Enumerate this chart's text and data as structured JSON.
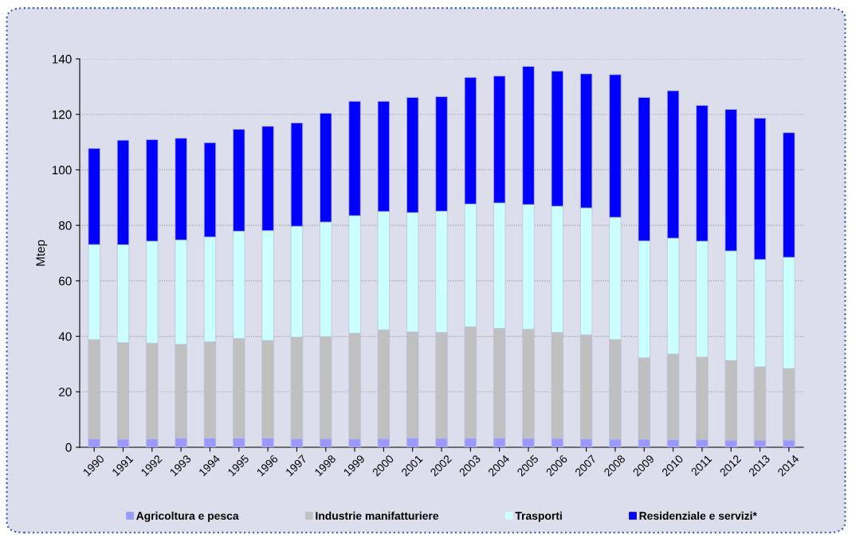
{
  "chart_data": {
    "type": "bar",
    "stacked": true,
    "ylabel": "Mtep",
    "categories": [
      "1990",
      "1991",
      "1992",
      "1993",
      "1994",
      "1995",
      "1996",
      "1997",
      "1998",
      "1999",
      "2000",
      "2001",
      "2002",
      "2003",
      "2004",
      "2005",
      "2006",
      "2007",
      "2008",
      "2009",
      "2010",
      "2011",
      "2012",
      "2013",
      "2014"
    ],
    "series": [
      {
        "name": "Agricoltura e pesca",
        "color": "#9999ff",
        "values": [
          3.0,
          2.9,
          3.0,
          3.3,
          3.3,
          3.3,
          3.3,
          3.1,
          3.1,
          3.0,
          3.1,
          3.3,
          3.2,
          3.3,
          3.3,
          3.2,
          3.2,
          3.0,
          2.9,
          2.9,
          2.8,
          2.8,
          2.6,
          2.6,
          2.6
        ]
      },
      {
        "name": "Industrie manifatturiere",
        "color": "#c0c0c0",
        "values": [
          35.8,
          34.8,
          34.5,
          33.8,
          34.7,
          35.9,
          35.2,
          36.6,
          36.8,
          38.1,
          39.2,
          38.3,
          38.2,
          40.1,
          39.6,
          39.3,
          38.2,
          37.5,
          35.9,
          29.4,
          30.8,
          29.7,
          28.7,
          26.4,
          25.8
        ]
      },
      {
        "name": "Trasporti",
        "color": "#ccffff",
        "values": [
          34.3,
          35.3,
          36.8,
          37.6,
          37.8,
          38.7,
          39.6,
          40.0,
          41.3,
          42.4,
          42.7,
          43.0,
          43.7,
          44.3,
          45.2,
          45.0,
          45.5,
          45.8,
          44.1,
          42.1,
          41.8,
          41.8,
          39.5,
          38.7,
          40.1
        ]
      },
      {
        "name": "Residenziale e servizi*",
        "color": "#0000ff",
        "values": [
          34.6,
          37.7,
          36.6,
          36.7,
          34.0,
          36.7,
          37.6,
          37.2,
          39.2,
          41.2,
          39.7,
          41.5,
          41.3,
          45.6,
          45.7,
          49.8,
          48.7,
          48.3,
          51.4,
          51.7,
          53.1,
          48.9,
          51.0,
          50.9,
          44.9
        ]
      }
    ],
    "ylim": [
      0,
      140
    ],
    "yticks": [
      0,
      20,
      40,
      60,
      80,
      100,
      120,
      140
    ],
    "grid": "y",
    "legend": "bottom"
  }
}
